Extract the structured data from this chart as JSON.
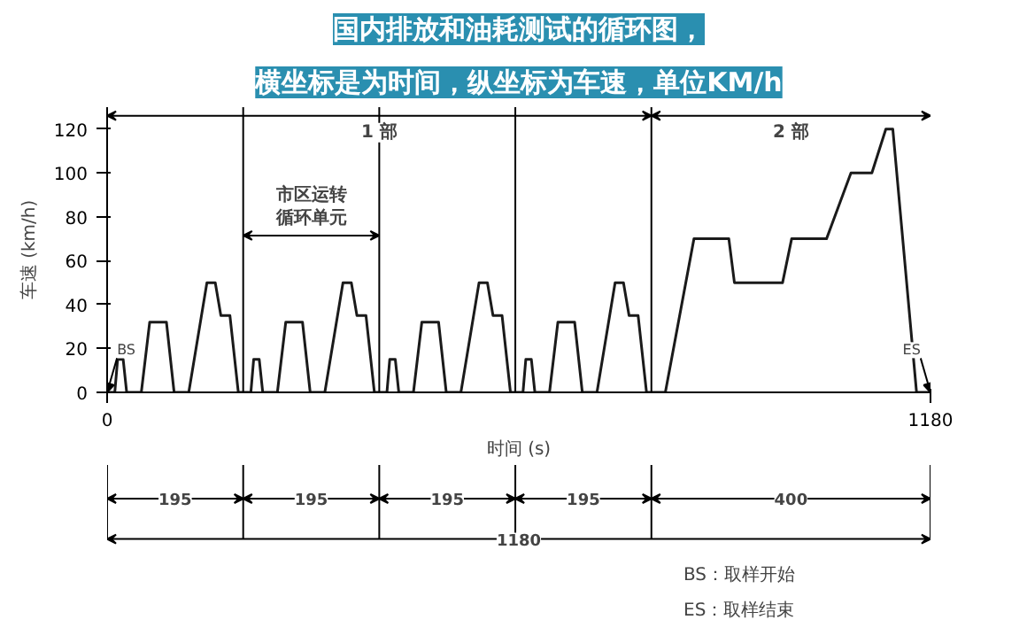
{
  "chart_data": {
    "type": "line",
    "title": "国内排放和油耗测试的循环图，",
    "subtitle": "横坐标是为时间，纵坐标为车速，单位KM/h",
    "xlabel": "时间 (s)",
    "ylabel": "车速 (km/h)",
    "x": [
      0,
      11,
      15,
      23,
      28,
      49,
      61,
      85,
      96,
      117,
      143,
      155,
      163,
      176,
      188,
      195,
      206,
      210,
      218,
      223,
      244,
      256,
      280,
      291,
      312,
      338,
      350,
      358,
      371,
      383,
      390,
      401,
      405,
      413,
      418,
      439,
      451,
      475,
      486,
      507,
      533,
      545,
      553,
      566,
      578,
      585,
      596,
      600,
      608,
      613,
      634,
      646,
      670,
      681,
      702,
      728,
      740,
      748,
      761,
      773,
      780,
      800,
      841,
      891,
      899,
      968,
      981,
      1031,
      1066,
      1096,
      1116,
      1126,
      1160,
      1180
    ],
    "series": [
      {
        "color": "#1a1a1a",
        "values": [
          0,
          0,
          15,
          15,
          0,
          0,
          32,
          32,
          0,
          0,
          50,
          50,
          35,
          35,
          0,
          0,
          0,
          15,
          15,
          0,
          0,
          32,
          32,
          0,
          0,
          50,
          50,
          35,
          35,
          0,
          0,
          0,
          15,
          15,
          0,
          0,
          32,
          32,
          0,
          0,
          50,
          50,
          35,
          35,
          0,
          0,
          0,
          15,
          15,
          0,
          0,
          32,
          32,
          0,
          0,
          50,
          50,
          35,
          35,
          0,
          0,
          0,
          70,
          70,
          50,
          50,
          70,
          70,
          100,
          100,
          120,
          120,
          0,
          0
        ]
      }
    ],
    "xlim": [
      0,
      1180
    ],
    "ylim": [
      0,
      130
    ],
    "xticks": [
      0,
      1180
    ],
    "yticks": [
      0,
      20,
      40,
      60,
      80,
      100,
      120
    ],
    "ref_lines": [
      {
        "axis": "x",
        "value": 195
      },
      {
        "axis": "x",
        "value": 390
      },
      {
        "axis": "x",
        "value": 585
      },
      {
        "axis": "x",
        "value": 780
      }
    ],
    "annotations": [
      {
        "text": "BS",
        "x": 0,
        "y": 0
      },
      {
        "text": "ES",
        "x": 1180,
        "y": 0
      },
      "1 部",
      "2 部",
      "市区运转循环单元",
      "195",
      "195",
      "195",
      "195",
      "400",
      "1180",
      "BS：取样开始",
      "ES：取样结束"
    ],
    "grid": false,
    "marker": "none",
    "line_style": "solid"
  }
}
